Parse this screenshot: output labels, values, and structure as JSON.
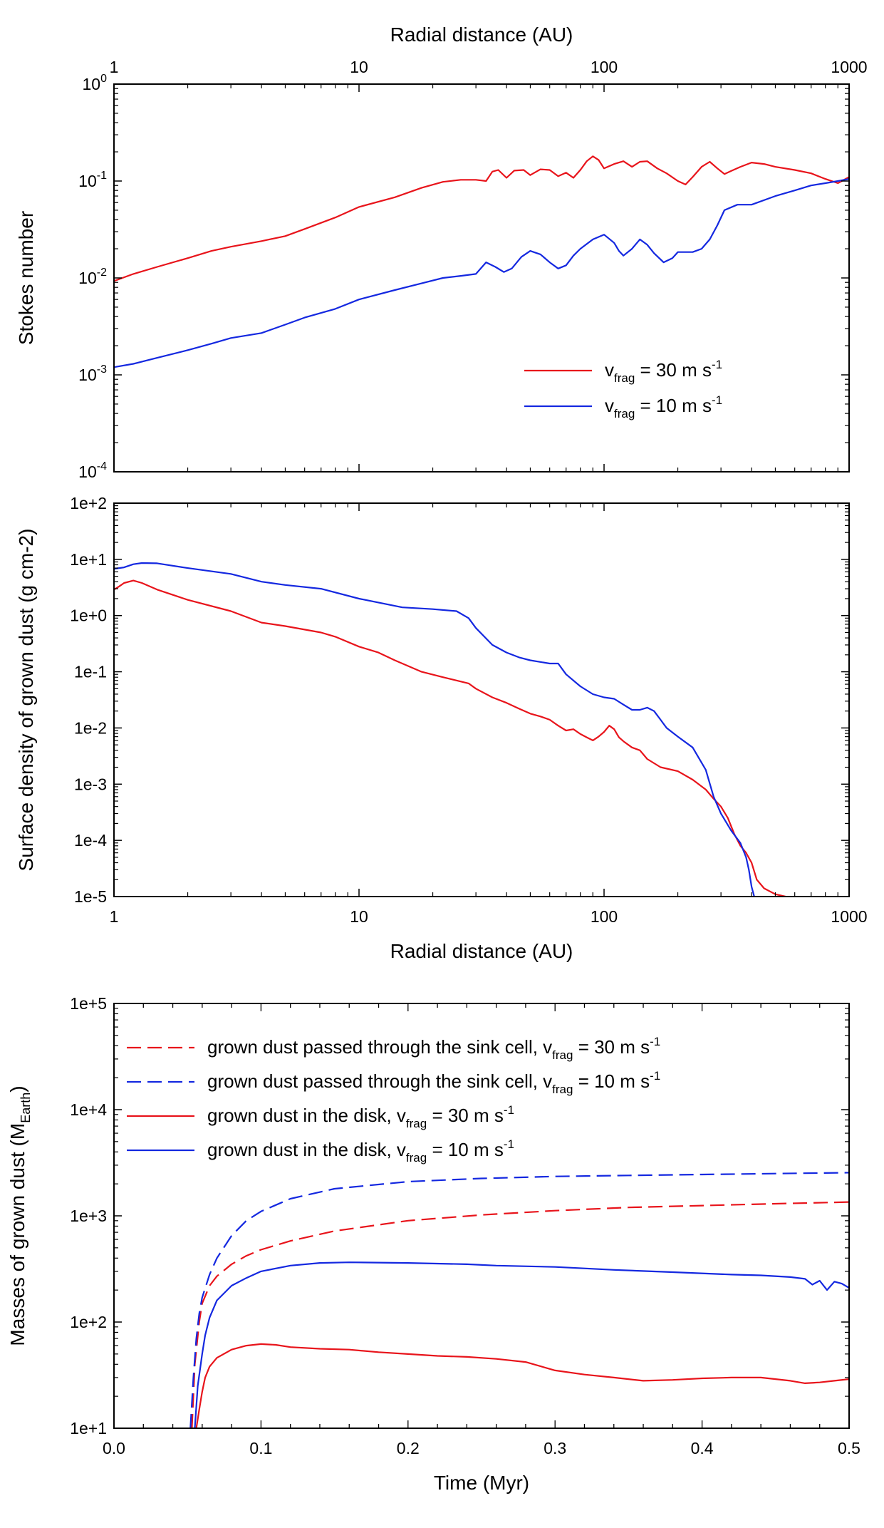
{
  "colors": {
    "red": "#e8141b",
    "blue": "#1428e0",
    "axis": "#000000"
  },
  "chart_data": [
    {
      "type": "line",
      "title": "",
      "xlabel": "Radial distance (AU)",
      "ylabel": "Stokes number",
      "xscale": "log",
      "yscale": "log",
      "xlim": [
        1,
        1000
      ],
      "ylim": [
        0.0001,
        1
      ],
      "x_tick_labels": [
        "1",
        "10",
        "100",
        "1000"
      ],
      "y_tick_labels": [
        {
          "base": "10",
          "exp": "0"
        },
        {
          "base": "10",
          "exp": "-1"
        },
        {
          "base": "10",
          "exp": "-2"
        },
        {
          "base": "10",
          "exp": "-3"
        },
        {
          "base": "10",
          "exp": "-4"
        }
      ],
      "legend_position": "lower-right",
      "legend": [
        {
          "prefix": "v",
          "sub": "frag",
          "mid": " = 30 m s",
          "sup": "-1",
          "color": "red",
          "style": "solid"
        },
        {
          "prefix": "v",
          "sub": "frag",
          "mid": " = 10 m s",
          "sup": "-1",
          "color": "blue",
          "style": "solid"
        }
      ],
      "series": [
        {
          "name": "v_frag = 30 m s^-1",
          "color": "red",
          "style": "solid",
          "x": [
            1,
            1.2,
            1.5,
            2,
            2.5,
            3,
            4,
            5,
            6,
            8,
            10,
            14,
            18,
            22,
            26,
            30,
            33,
            35,
            37,
            40,
            43,
            47,
            50,
            55,
            60,
            65,
            70,
            75,
            80,
            85,
            90,
            95,
            100,
            110,
            120,
            130,
            140,
            150,
            165,
            180,
            200,
            215,
            230,
            250,
            270,
            290,
            310,
            330,
            360,
            400,
            450,
            500,
            600,
            700,
            800,
            900,
            1000
          ],
          "y": [
            0.0093,
            0.011,
            0.013,
            0.016,
            0.019,
            0.021,
            0.024,
            0.027,
            0.032,
            0.042,
            0.054,
            0.068,
            0.085,
            0.098,
            0.103,
            0.103,
            0.1,
            0.125,
            0.13,
            0.108,
            0.128,
            0.13,
            0.115,
            0.132,
            0.13,
            0.112,
            0.122,
            0.108,
            0.13,
            0.16,
            0.18,
            0.165,
            0.135,
            0.15,
            0.16,
            0.14,
            0.158,
            0.16,
            0.135,
            0.12,
            0.1,
            0.092,
            0.11,
            0.14,
            0.158,
            0.135,
            0.118,
            0.127,
            0.14,
            0.155,
            0.15,
            0.14,
            0.13,
            0.12,
            0.105,
            0.095,
            0.11
          ]
        },
        {
          "name": "v_frag = 10 m s^-1",
          "color": "blue",
          "style": "solid",
          "x": [
            1,
            1.2,
            1.5,
            2,
            2.5,
            3,
            4,
            5,
            6,
            8,
            10,
            14,
            18,
            22,
            26,
            30,
            33,
            36,
            39,
            42,
            46,
            50,
            55,
            60,
            65,
            70,
            75,
            80,
            90,
            100,
            110,
            115,
            120,
            130,
            140,
            150,
            160,
            175,
            190,
            200,
            230,
            250,
            270,
            290,
            310,
            350,
            400,
            500,
            600,
            700,
            800,
            900,
            1000
          ],
          "y": [
            0.0012,
            0.0013,
            0.0015,
            0.0018,
            0.0021,
            0.0024,
            0.0027,
            0.0033,
            0.0039,
            0.0048,
            0.006,
            0.0075,
            0.0088,
            0.01,
            0.0105,
            0.011,
            0.0145,
            0.013,
            0.0115,
            0.0125,
            0.0165,
            0.019,
            0.0175,
            0.0145,
            0.0125,
            0.0135,
            0.017,
            0.02,
            0.025,
            0.028,
            0.023,
            0.019,
            0.017,
            0.02,
            0.025,
            0.022,
            0.018,
            0.0145,
            0.016,
            0.0185,
            0.0185,
            0.02,
            0.025,
            0.035,
            0.05,
            0.057,
            0.057,
            0.07,
            0.08,
            0.09,
            0.095,
            0.1,
            0.105
          ]
        }
      ]
    },
    {
      "type": "line",
      "title": "",
      "xlabel": "Radial distance (AU)",
      "ylabel": "Surface density of grown dust (g cm-2)",
      "xscale": "log",
      "yscale": "log",
      "xlim": [
        1,
        1000
      ],
      "ylim": [
        1e-05,
        100
      ],
      "x_tick_labels": [
        "1",
        "10",
        "100",
        "1000"
      ],
      "y_tick_labels": [
        "1e+2",
        "1e+1",
        "1e+0",
        "1e-1",
        "1e-2",
        "1e-3",
        "1e-4",
        "1e-5"
      ],
      "series": [
        {
          "name": "v_frag = 30 m s^-1",
          "color": "red",
          "style": "solid",
          "x": [
            1,
            1.05,
            1.1,
            1.2,
            1.3,
            1.5,
            2,
            3,
            4,
            5,
            7,
            8,
            10,
            12,
            14,
            18,
            22,
            28,
            30,
            35,
            40,
            45,
            50,
            55,
            60,
            65,
            70,
            75,
            80,
            85,
            90,
            95,
            100,
            105,
            110,
            115,
            120,
            130,
            140,
            150,
            170,
            200,
            230,
            260,
            280,
            300,
            320,
            340,
            360,
            380,
            400,
            420,
            450,
            500,
            550
          ],
          "y": [
            2.9,
            3.3,
            3.8,
            4.2,
            3.8,
            2.9,
            1.9,
            1.2,
            0.75,
            0.65,
            0.5,
            0.42,
            0.28,
            0.22,
            0.16,
            0.1,
            0.08,
            0.062,
            0.05,
            0.035,
            0.028,
            0.022,
            0.018,
            0.016,
            0.014,
            0.011,
            0.009,
            0.0095,
            0.0078,
            0.0068,
            0.006,
            0.007,
            0.0085,
            0.011,
            0.0095,
            0.0068,
            0.0058,
            0.0045,
            0.004,
            0.0028,
            0.002,
            0.0017,
            0.0012,
            0.0008,
            0.00055,
            0.0004,
            0.00025,
            0.00013,
            8e-05,
            6e-05,
            4e-05,
            2e-05,
            1.4e-05,
            1.1e-05,
            1e-05
          ]
        },
        {
          "name": "v_frag = 10 m s^-1",
          "color": "blue",
          "style": "solid",
          "x": [
            1,
            1.1,
            1.2,
            1.3,
            1.5,
            2,
            3,
            4,
            5,
            7,
            10,
            15,
            20,
            25,
            28,
            30,
            35,
            40,
            45,
            50,
            60,
            65,
            70,
            80,
            90,
            100,
            110,
            120,
            130,
            140,
            150,
            160,
            170,
            180,
            200,
            230,
            260,
            280,
            300,
            330,
            360,
            380,
            390,
            400,
            410
          ],
          "y": [
            6.8,
            7.2,
            8.2,
            8.6,
            8.5,
            7,
            5.5,
            4,
            3.5,
            3,
            2,
            1.4,
            1.3,
            1.2,
            0.9,
            0.6,
            0.3,
            0.22,
            0.18,
            0.16,
            0.14,
            0.14,
            0.09,
            0.055,
            0.04,
            0.035,
            0.033,
            0.026,
            0.021,
            0.021,
            0.023,
            0.02,
            0.014,
            0.01,
            0.007,
            0.0045,
            0.0018,
            0.0006,
            0.0003,
            0.00015,
            9e-05,
            5e-05,
            3e-05,
            1.5e-05,
            1e-05
          ]
        }
      ]
    },
    {
      "type": "line",
      "title": "",
      "xlabel": "Time (Myr)",
      "ylabel": "Masses of grown dust",
      "ylabel_sub": "Earth",
      "ylabel_prefix": "M",
      "xscale": "linear",
      "yscale": "log",
      "xlim": [
        0,
        0.5
      ],
      "ylim": [
        10,
        100000
      ],
      "x_tick_labels": [
        "0.0",
        "0.1",
        "0.2",
        "0.3",
        "0.4",
        "0.5"
      ],
      "y_tick_labels": [
        "1e+5",
        "1e+4",
        "1e+3",
        "1e+2",
        "1e+1"
      ],
      "legend_position": "upper-left",
      "legend": [
        {
          "prefix": "grown dust passed through the sink cell, v",
          "sub": "frag",
          "mid": " = 30 m s",
          "sup": "-1",
          "color": "red",
          "style": "dashed"
        },
        {
          "prefix": "grown dust passed through the sink cell, v",
          "sub": "frag",
          "mid": " = 10 m s",
          "sup": "-1",
          "color": "blue",
          "style": "dashed"
        },
        {
          "prefix": "grown dust in the disk, v",
          "sub": "frag",
          "mid": " = 30 m s",
          "sup": "-1",
          "color": "red",
          "style": "solid"
        },
        {
          "prefix": "grown dust in the disk, v",
          "sub": "frag",
          "mid": " = 10 m s",
          "sup": "-1",
          "color": "blue",
          "style": "solid"
        }
      ],
      "series": [
        {
          "name": "grown dust passed through the sink cell, v_frag = 30 m s^-1",
          "color": "red",
          "style": "dashed",
          "x": [
            0.053,
            0.055,
            0.058,
            0.06,
            0.065,
            0.07,
            0.08,
            0.09,
            0.1,
            0.12,
            0.15,
            0.2,
            0.25,
            0.3,
            0.35,
            0.4,
            0.45,
            0.5
          ],
          "y": [
            10,
            40,
            100,
            150,
            220,
            270,
            350,
            420,
            480,
            580,
            720,
            900,
            1020,
            1120,
            1200,
            1250,
            1300,
            1350
          ]
        },
        {
          "name": "grown dust passed through the sink cell, v_frag = 10 m s^-1",
          "color": "blue",
          "style": "dashed",
          "x": [
            0.052,
            0.054,
            0.056,
            0.058,
            0.06,
            0.065,
            0.07,
            0.08,
            0.09,
            0.1,
            0.12,
            0.15,
            0.2,
            0.25,
            0.3,
            0.35,
            0.4,
            0.45,
            0.5
          ],
          "y": [
            10,
            30,
            70,
            120,
            170,
            280,
            400,
            650,
            900,
            1100,
            1450,
            1800,
            2100,
            2250,
            2350,
            2400,
            2450,
            2500,
            2550
          ]
        },
        {
          "name": "grown dust in the disk, v_frag = 30 m s^-1",
          "color": "red",
          "style": "solid",
          "x": [
            0.056,
            0.058,
            0.06,
            0.062,
            0.065,
            0.07,
            0.08,
            0.09,
            0.1,
            0.11,
            0.12,
            0.14,
            0.16,
            0.18,
            0.2,
            0.22,
            0.24,
            0.26,
            0.28,
            0.3,
            0.32,
            0.34,
            0.36,
            0.38,
            0.4,
            0.42,
            0.44,
            0.46,
            0.47,
            0.48,
            0.49,
            0.5
          ],
          "y": [
            10,
            15,
            22,
            30,
            38,
            46,
            55,
            60,
            62,
            61,
            58,
            56,
            55,
            52,
            50,
            48,
            47,
            45,
            42,
            35,
            32,
            30,
            28,
            28.5,
            29.5,
            30,
            30,
            28,
            26.5,
            27,
            28,
            29
          ]
        },
        {
          "name": "grown dust in the disk, v_frag = 10 m s^-1",
          "color": "blue",
          "style": "solid",
          "x": [
            0.055,
            0.057,
            0.06,
            0.062,
            0.065,
            0.07,
            0.08,
            0.09,
            0.1,
            0.12,
            0.14,
            0.16,
            0.2,
            0.24,
            0.26,
            0.3,
            0.34,
            0.38,
            0.42,
            0.44,
            0.46,
            0.47,
            0.475,
            0.48,
            0.485,
            0.49,
            0.495,
            0.5
          ],
          "y": [
            10,
            25,
            50,
            75,
            110,
            160,
            220,
            260,
            300,
            340,
            360,
            365,
            360,
            350,
            340,
            330,
            310,
            295,
            280,
            275,
            265,
            255,
            225,
            245,
            200,
            240,
            230,
            210
          ]
        }
      ]
    }
  ]
}
